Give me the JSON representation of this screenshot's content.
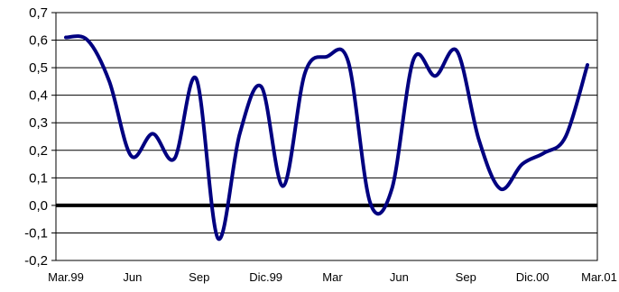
{
  "chart_data": {
    "type": "line",
    "title": "",
    "xlabel": "",
    "ylabel": "",
    "ylim": [
      -0.2,
      0.7
    ],
    "y_ticks": [
      "0,7",
      "0,6",
      "0,5",
      "0,4",
      "0,3",
      "0,2",
      "0,1",
      "0,0",
      "-0,1",
      "-0,2"
    ],
    "x_ticks": [
      "Mar.99",
      "Jun",
      "Sep",
      "Dic.99",
      "Mar",
      "Jun",
      "Sep",
      "Dic.00",
      "Mar.01"
    ],
    "grid": "horizontal",
    "legend": "none",
    "zero_line": true,
    "colors": {
      "series": "#000080",
      "zero_line": "#000000",
      "grid": "#000000"
    },
    "series": [
      {
        "values": [
          0.61,
          0.6,
          0.45,
          0.18,
          0.26,
          0.17,
          0.46,
          -0.12,
          0.26,
          0.43,
          0.07,
          0.48,
          0.54,
          0.52,
          0.01,
          0.06,
          0.53,
          0.47,
          0.56,
          0.24,
          0.06,
          0.15,
          0.19,
          0.25,
          0.51
        ]
      }
    ]
  }
}
